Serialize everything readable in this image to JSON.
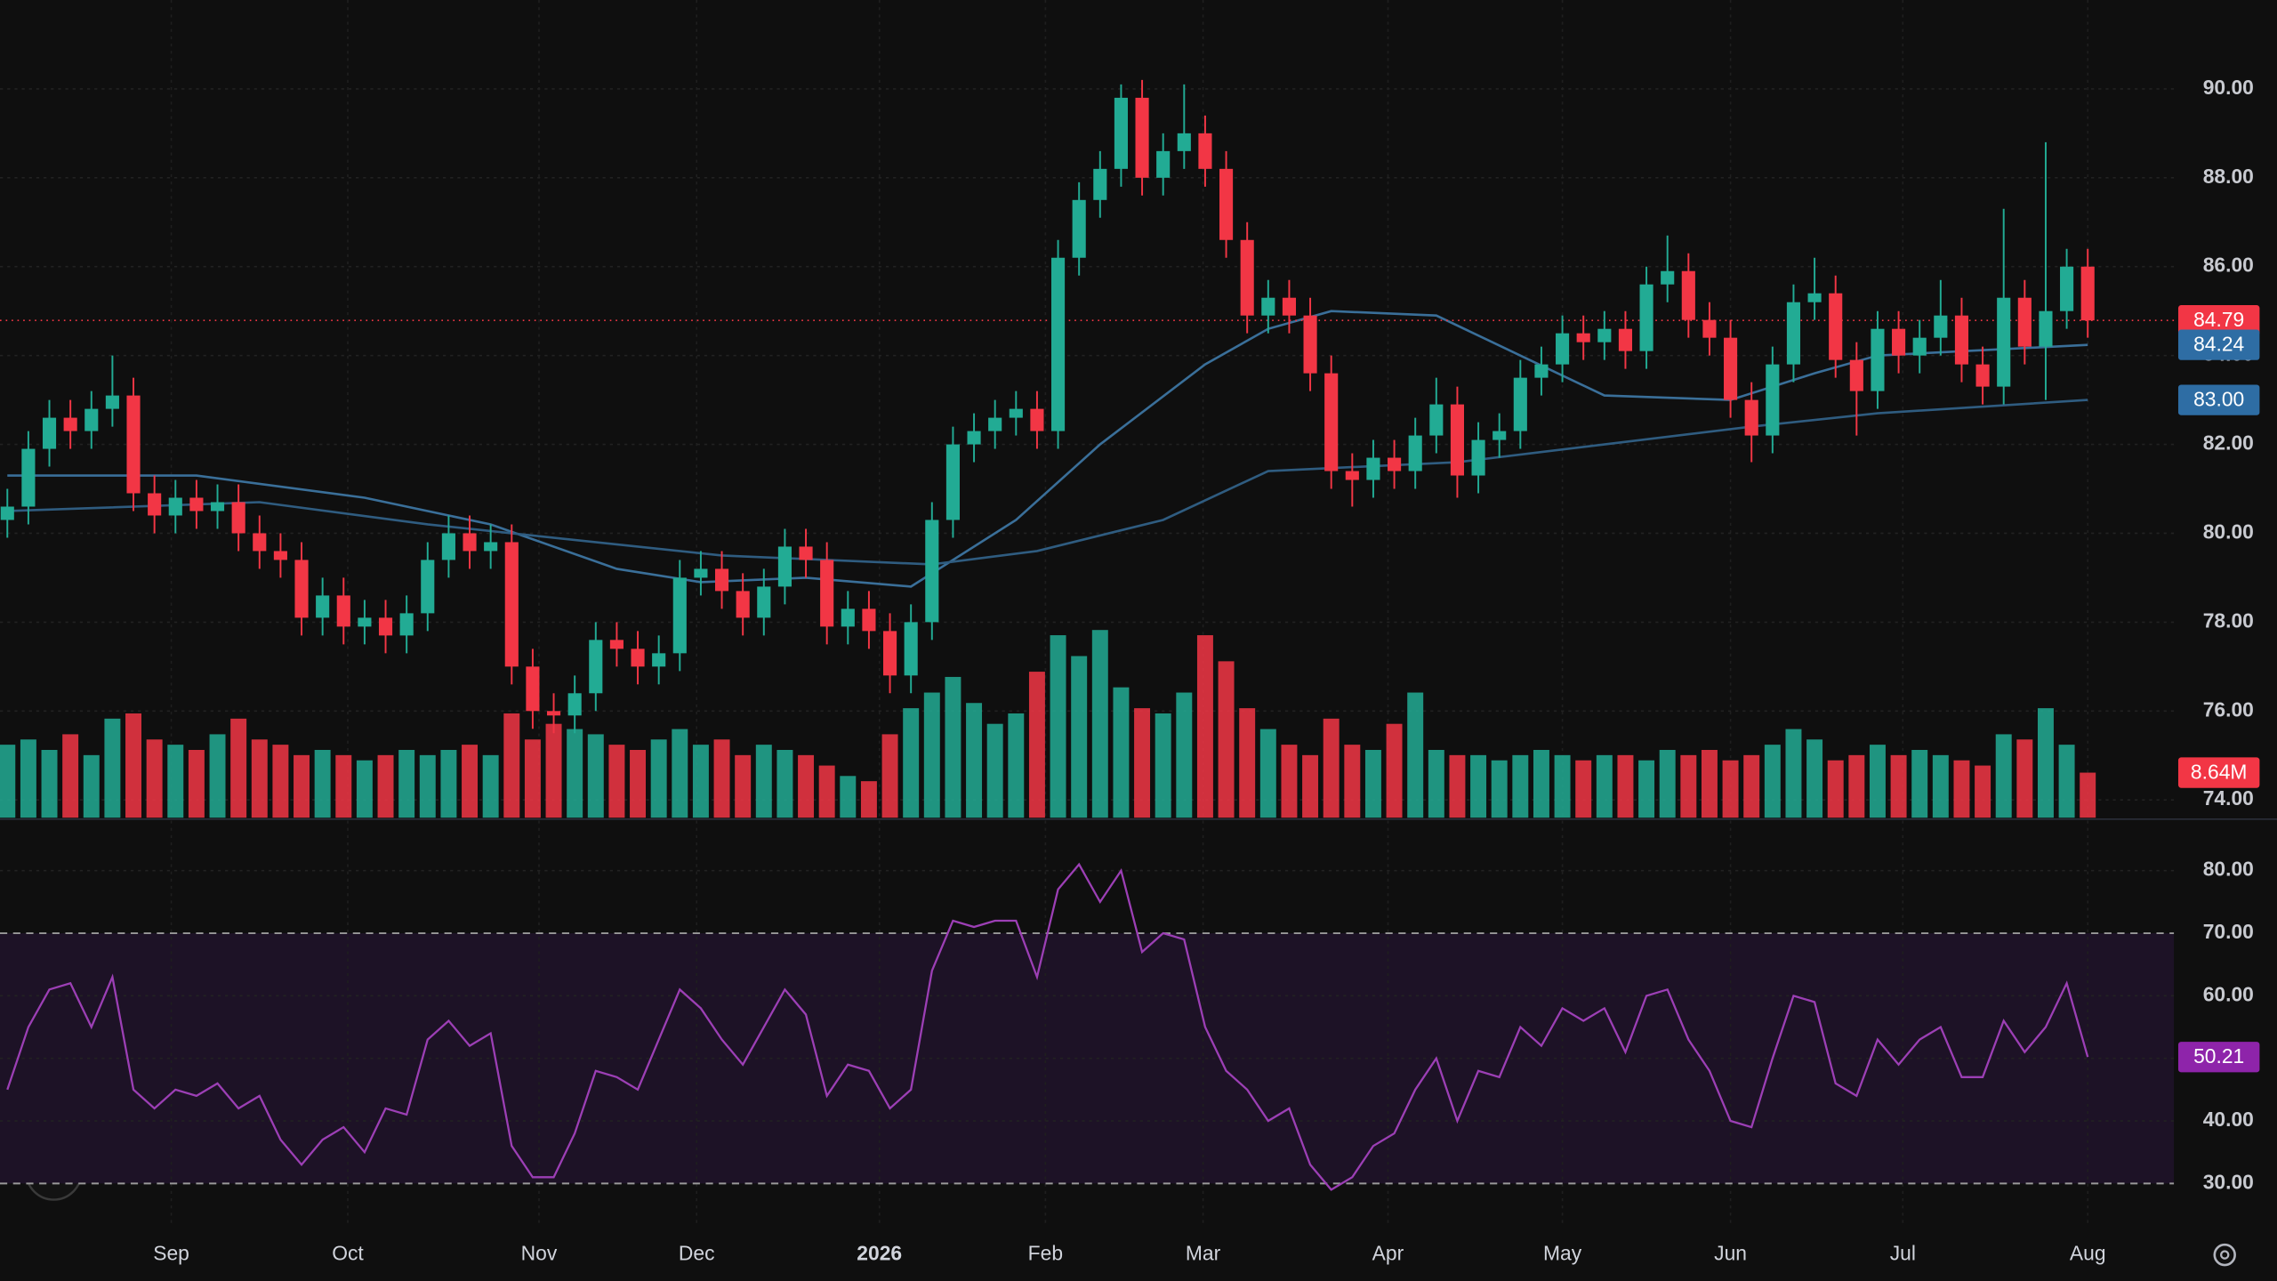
{
  "chart_data": {
    "type": "candlestick",
    "xlim": [
      -0.35,
      103.1
    ],
    "xticks": [
      {
        "value": 7.8,
        "label": "Sep"
      },
      {
        "value": 16.2,
        "label": "Oct"
      },
      {
        "value": 25.3,
        "label": "Nov"
      },
      {
        "value": 32.8,
        "label": "Dec"
      },
      {
        "value": 41.5,
        "label": "2026"
      },
      {
        "value": 49.4,
        "label": "Feb"
      },
      {
        "value": 56.9,
        "label": "Mar"
      },
      {
        "value": 65.7,
        "label": "Apr"
      },
      {
        "value": 74.0,
        "label": "May"
      },
      {
        "value": 82.0,
        "label": "Jun"
      },
      {
        "value": 90.2,
        "label": "Jul"
      },
      {
        "value": 99.0,
        "label": "Aug"
      }
    ],
    "price": {
      "ylim": [
        73.6,
        92.0
      ],
      "yticks": [
        {
          "value": 74,
          "label": "74.00"
        },
        {
          "value": 76,
          "label": "76.00"
        },
        {
          "value": 78,
          "label": "78.00"
        },
        {
          "value": 80,
          "label": "80.00"
        },
        {
          "value": 82,
          "label": "82.00"
        },
        {
          "value": 84,
          "label": "84.00"
        },
        {
          "value": 86,
          "label": "86.00"
        },
        {
          "value": 88,
          "label": "88.00"
        },
        {
          "value": 90,
          "label": "90.00"
        }
      ],
      "up_color": "#22ab94",
      "down_color": "#f23645",
      "open": [
        80.3,
        80.6,
        81.9,
        82.6,
        82.3,
        82.8,
        83.1,
        80.9,
        80.4,
        80.8,
        80.5,
        80.7,
        80.0,
        79.6,
        79.4,
        78.1,
        78.6,
        77.9,
        78.1,
        77.7,
        78.2,
        79.4,
        80.0,
        79.6,
        79.8,
        77.0,
        76.0,
        75.9,
        76.4,
        77.6,
        77.4,
        77.0,
        77.3,
        79.0,
        79.2,
        78.7,
        78.1,
        78.8,
        79.7,
        79.4,
        77.9,
        78.3,
        77.8,
        76.8,
        78.0,
        80.3,
        82.0,
        82.3,
        82.6,
        82.8,
        82.3,
        86.2,
        87.5,
        88.2,
        89.8,
        88.0,
        88.6,
        89.0,
        88.2,
        86.6,
        84.9,
        85.3,
        84.9,
        83.6,
        81.4,
        81.2,
        81.7,
        81.4,
        82.2,
        82.9,
        81.3,
        82.1,
        82.3,
        83.5,
        83.8,
        84.5,
        84.3,
        84.6,
        84.1,
        85.6,
        85.9,
        84.8,
        84.4,
        83.0,
        82.2,
        83.8,
        85.2,
        85.4,
        83.9,
        83.2,
        84.6,
        84.0,
        84.4,
        84.9,
        83.8,
        83.3,
        85.3,
        84.2,
        85.0,
        86.0
      ],
      "high": [
        81.0,
        82.3,
        83.0,
        83.0,
        83.2,
        84.0,
        83.5,
        81.3,
        81.2,
        81.2,
        81.1,
        81.1,
        80.4,
        80.0,
        79.8,
        79.0,
        79.0,
        78.5,
        78.5,
        78.6,
        79.8,
        80.4,
        80.4,
        80.2,
        80.2,
        77.4,
        76.4,
        76.8,
        78.0,
        78.0,
        77.8,
        77.7,
        79.4,
        79.6,
        79.6,
        79.1,
        79.2,
        80.1,
        80.1,
        79.8,
        78.7,
        78.7,
        78.2,
        78.4,
        80.7,
        82.4,
        82.7,
        83.0,
        83.2,
        83.2,
        86.6,
        87.9,
        88.6,
        90.1,
        90.2,
        89.0,
        90.1,
        89.4,
        88.6,
        87.0,
        85.7,
        85.7,
        85.3,
        84.0,
        81.8,
        82.1,
        82.1,
        82.6,
        83.5,
        83.3,
        82.5,
        82.7,
        83.9,
        84.2,
        84.9,
        84.9,
        85.0,
        85.0,
        86.0,
        86.7,
        86.3,
        85.2,
        84.8,
        83.4,
        84.2,
        85.6,
        86.2,
        85.8,
        84.3,
        85.0,
        85.0,
        84.8,
        85.7,
        85.3,
        84.2,
        87.3,
        85.7,
        88.8,
        86.4,
        86.4
      ],
      "low": [
        79.9,
        80.2,
        81.5,
        81.9,
        81.9,
        82.4,
        80.5,
        80.0,
        80.0,
        80.1,
        80.1,
        79.6,
        79.2,
        79.0,
        77.7,
        77.7,
        77.5,
        77.5,
        77.3,
        77.3,
        77.8,
        79.0,
        79.2,
        79.2,
        76.6,
        75.6,
        75.5,
        75.5,
        76.0,
        77.0,
        76.6,
        76.6,
        76.9,
        78.6,
        78.3,
        77.7,
        77.7,
        78.4,
        79.0,
        77.5,
        77.5,
        77.4,
        76.4,
        76.4,
        77.6,
        79.9,
        81.6,
        81.9,
        82.2,
        81.9,
        81.9,
        85.8,
        87.1,
        87.8,
        87.6,
        87.6,
        88.2,
        87.8,
        86.2,
        84.5,
        84.5,
        84.5,
        83.2,
        81.0,
        80.6,
        80.8,
        81.0,
        81.0,
        81.8,
        80.8,
        80.9,
        81.7,
        81.9,
        83.1,
        83.4,
        83.9,
        83.9,
        83.7,
        83.7,
        85.2,
        84.4,
        84.0,
        82.6,
        81.6,
        81.8,
        83.4,
        84.8,
        83.5,
        82.2,
        82.8,
        83.6,
        83.6,
        84.0,
        83.4,
        82.9,
        82.9,
        83.8,
        83.0,
        84.6,
        84.4
      ],
      "close": [
        80.6,
        81.9,
        82.6,
        82.3,
        82.8,
        83.1,
        80.9,
        80.4,
        80.8,
        80.5,
        80.7,
        80.0,
        79.6,
        79.4,
        78.1,
        78.6,
        77.9,
        78.1,
        77.7,
        78.2,
        79.4,
        80.0,
        79.6,
        79.8,
        77.0,
        76.0,
        75.9,
        76.4,
        77.6,
        77.4,
        77.0,
        77.3,
        79.0,
        79.2,
        78.7,
        78.1,
        78.8,
        79.7,
        79.4,
        77.9,
        78.3,
        77.8,
        76.8,
        78.0,
        80.3,
        82.0,
        82.3,
        82.6,
        82.8,
        82.3,
        86.2,
        87.5,
        88.2,
        89.8,
        88.0,
        88.6,
        89.0,
        88.2,
        86.6,
        84.9,
        85.3,
        84.9,
        83.6,
        81.4,
        81.2,
        81.7,
        81.4,
        82.2,
        82.9,
        81.3,
        82.1,
        82.3,
        83.5,
        83.8,
        84.5,
        84.3,
        84.6,
        84.1,
        85.6,
        85.9,
        84.8,
        84.4,
        83.0,
        82.2,
        83.8,
        85.2,
        85.4,
        83.9,
        83.2,
        84.6,
        84.0,
        84.4,
        84.9,
        83.8,
        83.3,
        85.3,
        84.2,
        85.0,
        86.0,
        84.79
      ],
      "last_label": "84.79"
    },
    "volume": {
      "vlim": [
        0,
        39
      ],
      "values": [
        14,
        15,
        13,
        16,
        12,
        19,
        20,
        15,
        14,
        13,
        16,
        19,
        15,
        14,
        12,
        13,
        12,
        11,
        12,
        13,
        12,
        13,
        14,
        12,
        20,
        15,
        18,
        17,
        16,
        14,
        13,
        15,
        17,
        14,
        15,
        12,
        14,
        13,
        12,
        10,
        8,
        7,
        16,
        21,
        24,
        27,
        22,
        18,
        20,
        28,
        35,
        31,
        36,
        25,
        21,
        20,
        24,
        35,
        30,
        21,
        17,
        14,
        12,
        19,
        14,
        13,
        18,
        24,
        13,
        12,
        12,
        11,
        12,
        13,
        12,
        11,
        12,
        12,
        11,
        13,
        12,
        13,
        11,
        12,
        14,
        17,
        15,
        11,
        12,
        14,
        12,
        13,
        12,
        11,
        10,
        16,
        15,
        21,
        14,
        8.64
      ],
      "last_label": "8.64M"
    },
    "ma": [
      {
        "color": "#3a6f99",
        "x": [
          0,
          9,
          17,
          23,
          29,
          33,
          38,
          43,
          48,
          52,
          57,
          60,
          63,
          68,
          72,
          76,
          82,
          86,
          89,
          99
        ],
        "values": [
          81.3,
          81.3,
          80.8,
          80.2,
          79.2,
          78.9,
          79.0,
          78.8,
          80.3,
          82.0,
          83.8,
          84.6,
          85.0,
          84.9,
          84.0,
          83.1,
          83.0,
          83.6,
          84.0,
          84.24
        ],
        "last_label": "84.24"
      },
      {
        "color": "#2f5c80",
        "x": [
          0,
          12,
          20,
          34,
          44,
          49,
          55,
          60,
          69,
          76,
          83,
          89,
          99
        ],
        "values": [
          80.5,
          80.7,
          80.2,
          79.5,
          79.3,
          79.6,
          80.3,
          81.4,
          81.6,
          82.0,
          82.4,
          82.7,
          83.0
        ],
        "last_label": "83.00"
      }
    ],
    "rsi": {
      "ylim": [
        23,
        88
      ],
      "yticks": [
        {
          "value": 30,
          "label": "30.00"
        },
        {
          "value": 40,
          "label": "40.00"
        },
        {
          "value": 50,
          "label": "50.00"
        },
        {
          "value": 60,
          "label": "60.00"
        },
        {
          "value": 70,
          "label": "70.00"
        },
        {
          "value": 80,
          "label": "80.00"
        }
      ],
      "bands": [
        30,
        70
      ],
      "color": "#9c3fb5",
      "values": [
        45,
        55,
        61,
        62,
        55,
        63,
        45,
        42,
        45,
        44,
        46,
        42,
        44,
        37,
        33,
        37,
        39,
        35,
        42,
        41,
        53,
        56,
        52,
        54,
        36,
        31,
        31,
        38,
        48,
        47,
        45,
        53,
        61,
        58,
        53,
        49,
        55,
        61,
        57,
        44,
        49,
        48,
        42,
        45,
        64,
        72,
        71,
        72,
        72,
        63,
        77,
        81,
        75,
        80,
        67,
        70,
        69,
        55,
        48,
        45,
        40,
        42,
        33,
        29,
        31,
        36,
        38,
        45,
        50,
        40,
        48,
        47,
        55,
        52,
        58,
        56,
        58,
        51,
        60,
        61,
        53,
        48,
        40,
        39,
        50,
        60,
        59,
        46,
        44,
        53,
        49,
        53,
        55,
        47,
        47,
        56,
        51,
        55,
        62,
        50.21
      ],
      "last_label": "50.21"
    }
  }
}
